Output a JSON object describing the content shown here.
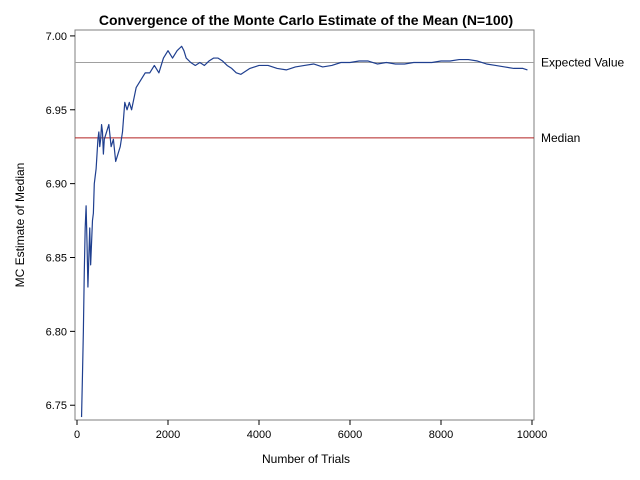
{
  "chart_data": {
    "type": "line",
    "title": "Convergence of the Monte Carlo Estimate of the Mean (N=100)",
    "xlabel": "Number of Trials",
    "ylabel": "MC Estimate of Median",
    "xlim": [
      0,
      10000
    ],
    "ylim": [
      6.74,
      7.004
    ],
    "x_ticks": [
      0,
      2000,
      4000,
      6000,
      8000,
      10000
    ],
    "y_ticks": [
      6.75,
      6.8,
      6.85,
      6.9,
      6.95,
      7.0
    ],
    "x_tick_labels": [
      "0",
      "2000",
      "4000",
      "6000",
      "8000",
      "10000"
    ],
    "y_tick_labels": [
      "6.75",
      "6.80",
      "6.85",
      "6.90",
      "6.95",
      "7.00"
    ],
    "grid": false,
    "series": [
      {
        "color": "#1f3f8f",
        "x": [
          100,
          120,
          140,
          160,
          180,
          200,
          220,
          240,
          260,
          280,
          300,
          320,
          340,
          360,
          380,
          400,
          420,
          440,
          460,
          480,
          500,
          520,
          540,
          560,
          580,
          600,
          650,
          700,
          750,
          800,
          850,
          900,
          950,
          1000,
          1050,
          1100,
          1150,
          1200,
          1300,
          1400,
          1500,
          1600,
          1700,
          1800,
          1900,
          2000,
          2100,
          2200,
          2300,
          2350,
          2400,
          2500,
          2600,
          2700,
          2800,
          2900,
          3000,
          3100,
          3200,
          3300,
          3400,
          3500,
          3600,
          3700,
          3800,
          4000,
          4200,
          4400,
          4600,
          4800,
          5000,
          5200,
          5400,
          5600,
          5800,
          6000,
          6200,
          6400,
          6600,
          6800,
          7000,
          7200,
          7400,
          7600,
          7800,
          8000,
          8200,
          8400,
          8600,
          8800,
          9000,
          9200,
          9400,
          9600,
          9800,
          9900
        ],
        "values": [
          6.742,
          6.77,
          6.8,
          6.84,
          6.87,
          6.885,
          6.86,
          6.83,
          6.85,
          6.87,
          6.845,
          6.86,
          6.875,
          6.88,
          6.9,
          6.905,
          6.91,
          6.92,
          6.93,
          6.935,
          6.925,
          6.93,
          6.94,
          6.935,
          6.92,
          6.93,
          6.935,
          6.94,
          6.925,
          6.93,
          6.915,
          6.92,
          6.925,
          6.935,
          6.955,
          6.95,
          6.955,
          6.95,
          6.965,
          6.97,
          6.975,
          6.975,
          6.98,
          6.975,
          6.985,
          6.99,
          6.985,
          6.99,
          6.993,
          6.99,
          6.985,
          6.982,
          6.98,
          6.982,
          6.98,
          6.983,
          6.985,
          6.985,
          6.983,
          6.98,
          6.978,
          6.975,
          6.974,
          6.976,
          6.978,
          6.98,
          6.98,
          6.978,
          6.977,
          6.979,
          6.98,
          6.981,
          6.979,
          6.98,
          6.982,
          6.982,
          6.983,
          6.983,
          6.981,
          6.982,
          6.981,
          6.981,
          6.982,
          6.982,
          6.982,
          6.983,
          6.983,
          6.984,
          6.984,
          6.983,
          6.981,
          6.98,
          6.979,
          6.978,
          6.978,
          6.977
        ]
      }
    ],
    "reference_lines": [
      {
        "label": "Expected Value",
        "y": 6.982,
        "color": "#a0a0a0"
      },
      {
        "label": "Median",
        "y": 6.931,
        "color": "#b22222"
      }
    ]
  }
}
